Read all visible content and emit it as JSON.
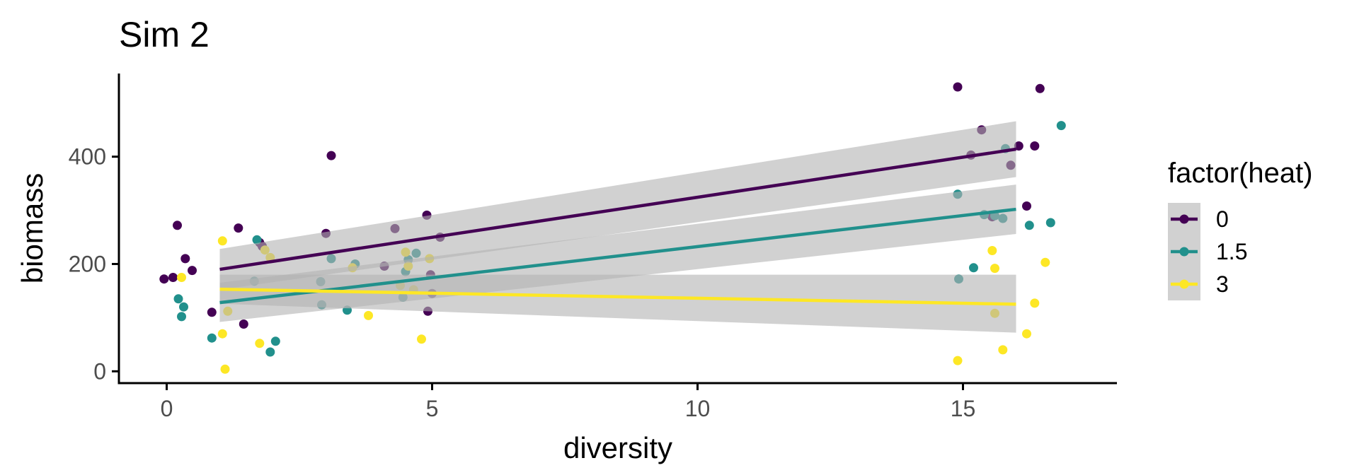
{
  "chart_data": {
    "type": "scatter",
    "title": "Sim 2",
    "xlabel": "diversity",
    "ylabel": "biomass",
    "xlim": [
      -0.9,
      17.9
    ],
    "ylim": [
      -22,
      555
    ],
    "x_ticks": [
      "0",
      "5",
      "10",
      "15"
    ],
    "y_ticks": [
      "0",
      "200",
      "400"
    ],
    "x_tick_values": [
      0,
      5,
      10,
      15
    ],
    "y_tick_values": [
      0,
      200,
      400
    ],
    "grid": false,
    "legend": {
      "title": "factor(heat)",
      "position": "right",
      "entries": [
        "0",
        "1.5",
        "3"
      ]
    },
    "band_color": "#b3b3b3",
    "series": [
      {
        "name": "0",
        "color": "#440154",
        "points": [
          [
            -0.05,
            172
          ],
          [
            0.12,
            175
          ],
          [
            0.2,
            272
          ],
          [
            0.35,
            210
          ],
          [
            0.48,
            188
          ],
          [
            0.85,
            110
          ],
          [
            1.35,
            267
          ],
          [
            1.45,
            88
          ],
          [
            1.75,
            240
          ],
          [
            1.8,
            233
          ],
          [
            3.0,
            257
          ],
          [
            3.1,
            402
          ],
          [
            4.1,
            196
          ],
          [
            4.3,
            266
          ],
          [
            4.9,
            291
          ],
          [
            4.92,
            112
          ],
          [
            4.97,
            180
          ],
          [
            5.0,
            145
          ],
          [
            5.15,
            250
          ],
          [
            14.9,
            530
          ],
          [
            15.15,
            403
          ],
          [
            15.35,
            450
          ],
          [
            15.55,
            288
          ],
          [
            15.9,
            384
          ],
          [
            16.05,
            420
          ],
          [
            16.2,
            308
          ],
          [
            16.35,
            420
          ],
          [
            16.45,
            527
          ]
        ],
        "fit": {
          "x": [
            1,
            16
          ],
          "y": [
            190,
            414
          ],
          "ci_lower": [
            152,
            362
          ],
          "ci_upper": [
            228,
            466
          ]
        }
      },
      {
        "name": "1.5",
        "color": "#21908C",
        "points": [
          [
            0.22,
            135
          ],
          [
            0.28,
            102
          ],
          [
            0.32,
            120
          ],
          [
            0.85,
            62
          ],
          [
            1.65,
            168
          ],
          [
            1.7,
            245
          ],
          [
            1.95,
            36
          ],
          [
            2.05,
            56
          ],
          [
            2.9,
            167
          ],
          [
            2.92,
            124
          ],
          [
            3.1,
            210
          ],
          [
            3.4,
            114
          ],
          [
            3.55,
            200
          ],
          [
            4.45,
            138
          ],
          [
            4.5,
            186
          ],
          [
            4.55,
            208
          ],
          [
            4.7,
            220
          ],
          [
            14.9,
            330
          ],
          [
            14.92,
            172
          ],
          [
            15.2,
            193
          ],
          [
            15.4,
            292
          ],
          [
            15.6,
            290
          ],
          [
            15.75,
            285
          ],
          [
            15.8,
            415
          ],
          [
            16.25,
            272
          ],
          [
            16.65,
            277
          ],
          [
            16.85,
            458
          ]
        ],
        "fit": {
          "x": [
            1,
            16
          ],
          "y": [
            128,
            302
          ],
          "ci_lower": [
            92,
            256
          ],
          "ci_upper": [
            165,
            348
          ]
        }
      },
      {
        "name": "3",
        "color": "#FDE725",
        "points": [
          [
            0.28,
            175
          ],
          [
            1.05,
            243
          ],
          [
            1.05,
            70
          ],
          [
            1.1,
            4
          ],
          [
            1.15,
            112
          ],
          [
            1.75,
            52
          ],
          [
            1.85,
            226
          ],
          [
            1.95,
            212
          ],
          [
            3.5,
            193
          ],
          [
            3.8,
            104
          ],
          [
            4.4,
            160
          ],
          [
            4.5,
            222
          ],
          [
            4.55,
            196
          ],
          [
            4.65,
            152
          ],
          [
            4.8,
            60
          ],
          [
            4.95,
            210
          ],
          [
            14.9,
            20
          ],
          [
            15.55,
            225
          ],
          [
            15.6,
            108
          ],
          [
            15.6,
            192
          ],
          [
            15.75,
            40
          ],
          [
            16.2,
            70
          ],
          [
            16.35,
            127
          ],
          [
            16.55,
            203
          ]
        ],
        "fit": {
          "x": [
            1,
            16
          ],
          "y": [
            153,
            125
          ],
          "ci_lower": [
            126,
            72
          ],
          "ci_upper": [
            180,
            180
          ]
        }
      }
    ]
  }
}
